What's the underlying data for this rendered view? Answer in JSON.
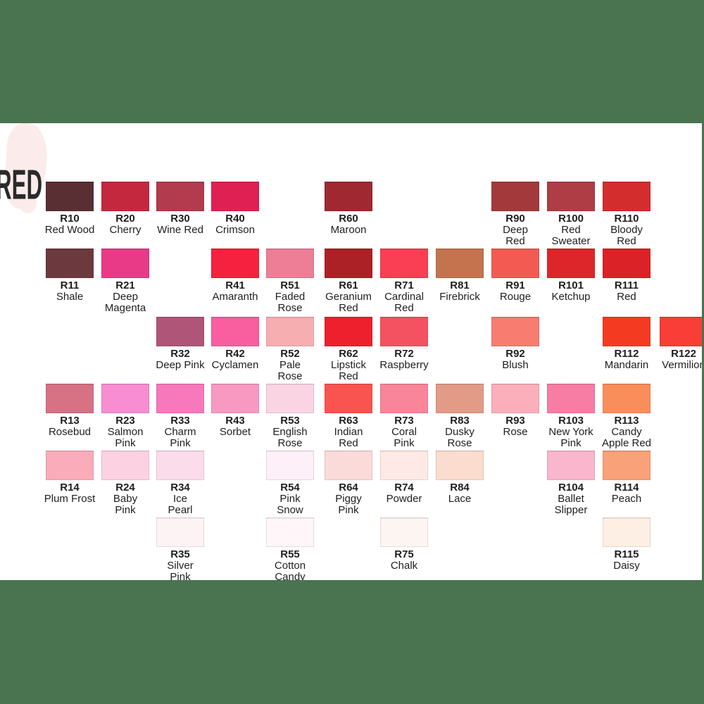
{
  "page": {
    "title": "RED",
    "colors": {
      "background_green": "#4A7350",
      "panel_white": "#FFFFFF",
      "brush_blob_pink": "#FBECEB",
      "label_text": "#1E1E1E",
      "title_text": "#2B2A2A"
    }
  },
  "swatches": [
    {
      "code": "R10",
      "name": "Red Wood",
      "row": 1,
      "col": 1,
      "color": "#5A2F33"
    },
    {
      "code": "R20",
      "name": "Cherry",
      "row": 1,
      "col": 2,
      "color": "#C4283F"
    },
    {
      "code": "R30",
      "name": "Wine Red",
      "row": 1,
      "col": 3,
      "color": "#B23C4E"
    },
    {
      "code": "R40",
      "name": "Crimson",
      "row": 1,
      "col": 4,
      "color": "#DE2152"
    },
    {
      "code": "R60",
      "name": "Maroon",
      "row": 1,
      "col": 6,
      "color": "#9E2931"
    },
    {
      "code": "R90",
      "name": "Deep\nRed",
      "row": 1,
      "col": 9,
      "color": "#A3393B"
    },
    {
      "code": "R100",
      "name": "Red\nSweater",
      "row": 1,
      "col": 10,
      "color": "#AE3D46"
    },
    {
      "code": "R110",
      "name": "Bloody\nRed",
      "row": 1,
      "col": 11,
      "color": "#D32D2E"
    },
    {
      "code": "R11",
      "name": "Shale",
      "row": 2,
      "col": 1,
      "color": "#6C3A3E"
    },
    {
      "code": "R21",
      "name": "Deep\nMagenta",
      "row": 2,
      "col": 2,
      "color": "#E83A86"
    },
    {
      "code": "R41",
      "name": "Amaranth",
      "row": 2,
      "col": 4,
      "color": "#F6213E"
    },
    {
      "code": "R51",
      "name": "Faded\nRose",
      "row": 2,
      "col": 5,
      "color": "#ED7E96"
    },
    {
      "code": "R61",
      "name": "Geranium\nRed",
      "row": 2,
      "col": 6,
      "color": "#AC2126"
    },
    {
      "code": "R71",
      "name": "Cardinal\nRed",
      "row": 2,
      "col": 7,
      "color": "#FA3E54"
    },
    {
      "code": "R81",
      "name": "Firebrick",
      "row": 2,
      "col": 8,
      "color": "#C3744F"
    },
    {
      "code": "R91",
      "name": "Rouge",
      "row": 2,
      "col": 9,
      "color": "#F25B52"
    },
    {
      "code": "R101",
      "name": "Ketchup",
      "row": 2,
      "col": 10,
      "color": "#DD2629"
    },
    {
      "code": "R111",
      "name": "Red",
      "row": 2,
      "col": 11,
      "color": "#DB2226"
    },
    {
      "code": "R32",
      "name": "Deep Pink",
      "row": 3,
      "col": 3,
      "color": "#AE5578"
    },
    {
      "code": "R42",
      "name": "Cyclamen",
      "row": 3,
      "col": 4,
      "color": "#F95E9E"
    },
    {
      "code": "R52",
      "name": "Pale\nRose",
      "row": 3,
      "col": 5,
      "color": "#F7AEB1"
    },
    {
      "code": "R62",
      "name": "Lipstick\nRed",
      "row": 3,
      "col": 6,
      "color": "#EE202E"
    },
    {
      "code": "R72",
      "name": "Raspberry",
      "row": 3,
      "col": 7,
      "color": "#F45260"
    },
    {
      "code": "R92",
      "name": "Blush",
      "row": 3,
      "col": 9,
      "color": "#F87C70"
    },
    {
      "code": "R112",
      "name": "Mandarin",
      "row": 3,
      "col": 11,
      "color": "#F43B21"
    },
    {
      "code": "R122",
      "name": "Vermilion",
      "row": 3,
      "col": 12,
      "color": "#F83E37"
    },
    {
      "code": "R13",
      "name": "Rosebud",
      "row": 4,
      "col": 1,
      "color": "#D77184"
    },
    {
      "code": "R23",
      "name": "Salmon\nPink",
      "row": 4,
      "col": 2,
      "color": "#F88DD2"
    },
    {
      "code": "R33",
      "name": "Charm\nPink",
      "row": 4,
      "col": 3,
      "color": "#F779BB"
    },
    {
      "code": "R43",
      "name": "Sorbet",
      "row": 4,
      "col": 4,
      "color": "#F899C1"
    },
    {
      "code": "R53",
      "name": "English\nRose",
      "row": 4,
      "col": 5,
      "color": "#FBD4E3"
    },
    {
      "code": "R63",
      "name": "Indian\nRed",
      "row": 4,
      "col": 6,
      "color": "#F9544F"
    },
    {
      "code": "R73",
      "name": "Coral\nPink",
      "row": 4,
      "col": 7,
      "color": "#F9859A"
    },
    {
      "code": "R83",
      "name": "Dusky\nRose",
      "row": 4,
      "col": 8,
      "color": "#E29B87"
    },
    {
      "code": "R93",
      "name": "Rose",
      "row": 4,
      "col": 9,
      "color": "#FAAFBA"
    },
    {
      "code": "R103",
      "name": "New York\nPink",
      "row": 4,
      "col": 10,
      "color": "#F87DA5"
    },
    {
      "code": "R113",
      "name": "Candy\nApple Red",
      "row": 4,
      "col": 11,
      "color": "#F98E5B"
    },
    {
      "code": "R14",
      "name": "Plum Frost",
      "row": 5,
      "col": 1,
      "color": "#FAACBA"
    },
    {
      "code": "R24",
      "name": "Baby\nPink",
      "row": 5,
      "col": 2,
      "color": "#FCD2E2"
    },
    {
      "code": "R34",
      "name": "Ice\nPearl",
      "row": 5,
      "col": 3,
      "color": "#FBDCEB"
    },
    {
      "code": "R54",
      "name": "Pink\nSnow",
      "row": 5,
      "col": 5,
      "color": "#FDF0F8"
    },
    {
      "code": "R64",
      "name": "Piggy\nPink",
      "row": 5,
      "col": 6,
      "color": "#FADBD9"
    },
    {
      "code": "R74",
      "name": "Powder",
      "row": 5,
      "col": 7,
      "color": "#FDEAE6"
    },
    {
      "code": "R84",
      "name": "Lace",
      "row": 5,
      "col": 8,
      "color": "#FADDCE"
    },
    {
      "code": "R104",
      "name": "Ballet\nSlipper",
      "row": 5,
      "col": 10,
      "color": "#FAB6CD"
    },
    {
      "code": "R114",
      "name": "Peach",
      "row": 5,
      "col": 11,
      "color": "#F9A179"
    },
    {
      "code": "R35",
      "name": "Silver\nPink",
      "row": 6,
      "col": 3,
      "color": "#FDF3F5"
    },
    {
      "code": "R55",
      "name": "Cotton\nCandy",
      "row": 6,
      "col": 5,
      "color": "#FEF6F9"
    },
    {
      "code": "R75",
      "name": "Chalk",
      "row": 6,
      "col": 7,
      "color": "#FDF5F1"
    },
    {
      "code": "R115",
      "name": "Daisy",
      "row": 6,
      "col": 11,
      "color": "#FDEFE3"
    }
  ]
}
